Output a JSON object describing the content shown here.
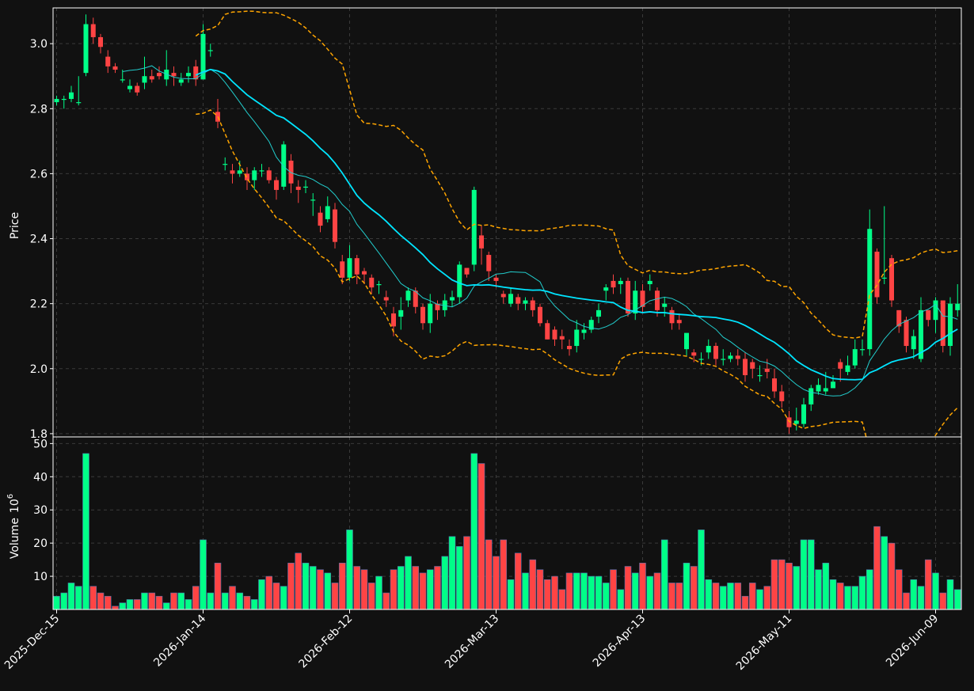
{
  "chart_data": {
    "type": "candlestick",
    "theme": {
      "background": "#111111",
      "up_color": "#00ff88",
      "down_color": "#ff4444",
      "volume_edge_color": "#4f6fa8",
      "ma_long_color": "#00e5ff",
      "ma_short_color": "#22cccc",
      "band_color": "#ffa500",
      "grid": true,
      "grid_color": "#3a3a3a"
    },
    "price_panel": {
      "ylabel": "Price",
      "ylim": [
        1.79,
        3.11
      ],
      "yticks": [
        "1.8",
        "2.0",
        "2.2",
        "2.4",
        "2.6",
        "2.8",
        "3.0"
      ]
    },
    "volume_panel": {
      "ylabel": "Volume",
      "ylabel_exponent": "10",
      "ylabel_power": "6",
      "ylim": [
        0,
        52
      ],
      "yticks": [
        "10",
        "20",
        "30",
        "40",
        "50"
      ]
    },
    "x_ticks": [
      {
        "label": "2025-Dec-15",
        "index": 0
      },
      {
        "label": "2026-Jan-14",
        "index": 20
      },
      {
        "label": "2026-Feb-12",
        "index": 40
      },
      {
        "label": "2026-Mar-13",
        "index": 60
      },
      {
        "label": "2026-Apr-13",
        "index": 80
      },
      {
        "label": "2026-May-11",
        "index": 100
      },
      {
        "label": "2026-Jun-09",
        "index": 120
      }
    ],
    "n_bars": 124,
    "closes": [
      2.83,
      2.83,
      2.85,
      2.82,
      3.06,
      3.02,
      2.99,
      2.93,
      2.92,
      2.89,
      2.87,
      2.85,
      2.9,
      2.89,
      2.9,
      2.92,
      2.9,
      2.89,
      2.91,
      2.89,
      3.03,
      2.98,
      2.76,
      2.63,
      2.6,
      2.61,
      2.58,
      2.61,
      2.61,
      2.58,
      2.55,
      2.69,
      2.57,
      2.55,
      2.56,
      2.52,
      2.44,
      2.5,
      2.39,
      2.28,
      2.34,
      2.29,
      2.29,
      2.25,
      2.26,
      2.21,
      2.13,
      2.18,
      2.24,
      2.19,
      2.14,
      2.2,
      2.18,
      2.21,
      2.22,
      2.32,
      2.29,
      2.55,
      2.37,
      2.3,
      2.27,
      2.22,
      2.23,
      2.2,
      2.21,
      2.18,
      2.14,
      2.09,
      2.09,
      2.09,
      2.06,
      2.12,
      2.12,
      2.15,
      2.18,
      2.25,
      2.25,
      2.27,
      2.17,
      2.24,
      2.19,
      2.27,
      2.18,
      2.2,
      2.14,
      2.14,
      2.11,
      2.04,
      2.03,
      2.07,
      2.03,
      2.03,
      2.04,
      2.03,
      1.98,
      2.0,
      1.98,
      1.99,
      1.93,
      1.9,
      1.82,
      1.84,
      1.89,
      1.94,
      1.95,
      1.94,
      1.96,
      2.0,
      2.01,
      2.06,
      2.06,
      2.43,
      2.22,
      2.28,
      2.21,
      2.13,
      2.07,
      2.1,
      2.18,
      2.15,
      2.21,
      2.07,
      2.2,
      2.2
    ],
    "opens": [
      2.82,
      2.83,
      2.83,
      2.82,
      2.91,
      3.06,
      3.02,
      2.96,
      2.93,
      2.89,
      2.86,
      2.87,
      2.88,
      2.9,
      2.91,
      2.89,
      2.91,
      2.88,
      2.9,
      2.93,
      2.89,
      2.98,
      2.79,
      2.63,
      2.61,
      2.6,
      2.6,
      2.58,
      2.61,
      2.61,
      2.58,
      2.56,
      2.64,
      2.56,
      2.56,
      2.52,
      2.48,
      2.46,
      2.49,
      2.33,
      2.28,
      2.34,
      2.3,
      2.28,
      2.26,
      2.22,
      2.17,
      2.16,
      2.21,
      2.24,
      2.19,
      2.14,
      2.2,
      2.18,
      2.21,
      2.22,
      2.31,
      2.32,
      2.41,
      2.35,
      2.28,
      2.23,
      2.2,
      2.22,
      2.2,
      2.21,
      2.19,
      2.14,
      2.12,
      2.1,
      2.07,
      2.07,
      2.11,
      2.12,
      2.16,
      2.24,
      2.27,
      2.26,
      2.27,
      2.17,
      2.24,
      2.26,
      2.24,
      2.19,
      2.18,
      2.15,
      2.06,
      2.05,
      2.03,
      2.05,
      2.07,
      2.03,
      2.03,
      2.04,
      2.03,
      2.02,
      1.98,
      2.0,
      1.97,
      1.93,
      1.85,
      1.83,
      1.83,
      1.89,
      1.93,
      1.93,
      1.94,
      2.02,
      1.99,
      2.01,
      2.06,
      2.06,
      2.36,
      2.28,
      2.34,
      2.18,
      2.15,
      2.06,
      2.03,
      2.18,
      2.15,
      2.21,
      2.07,
      2.18
    ],
    "highs": [
      2.84,
      2.84,
      2.87,
      2.9,
      3.09,
      3.08,
      3.03,
      2.98,
      2.94,
      2.92,
      2.89,
      2.88,
      2.96,
      2.92,
      2.93,
      2.98,
      2.93,
      2.91,
      2.93,
      2.95,
      3.06,
      3.0,
      2.83,
      2.65,
      2.63,
      2.64,
      2.62,
      2.62,
      2.63,
      2.62,
      2.59,
      2.7,
      2.66,
      2.58,
      2.58,
      2.54,
      2.5,
      2.53,
      2.51,
      2.35,
      2.38,
      2.35,
      2.31,
      2.29,
      2.27,
      2.24,
      2.19,
      2.22,
      2.25,
      2.25,
      2.2,
      2.23,
      2.21,
      2.23,
      2.24,
      2.33,
      2.31,
      2.56,
      2.44,
      2.36,
      2.29,
      2.24,
      2.25,
      2.23,
      2.22,
      2.22,
      2.2,
      2.15,
      2.13,
      2.12,
      2.09,
      2.15,
      2.14,
      2.16,
      2.2,
      2.26,
      2.29,
      2.28,
      2.28,
      2.27,
      2.26,
      2.29,
      2.25,
      2.22,
      2.19,
      2.17,
      2.08,
      2.06,
      2.05,
      2.09,
      2.08,
      2.06,
      2.05,
      2.06,
      2.05,
      2.03,
      2.01,
      2.03,
      2.0,
      1.95,
      1.87,
      1.88,
      1.91,
      1.95,
      1.97,
      1.99,
      1.98,
      2.03,
      2.04,
      2.09,
      2.09,
      2.49,
      2.37,
      2.5,
      2.35,
      2.18,
      2.16,
      2.12,
      2.22,
      2.18,
      2.22,
      2.16,
      2.22,
      2.26
    ],
    "lows": [
      2.81,
      2.8,
      2.82,
      2.81,
      2.9,
      3.0,
      2.97,
      2.91,
      2.91,
      2.88,
      2.85,
      2.84,
      2.86,
      2.88,
      2.89,
      2.87,
      2.87,
      2.87,
      2.88,
      2.87,
      2.89,
      2.96,
      2.74,
      2.61,
      2.57,
      2.59,
      2.55,
      2.55,
      2.59,
      2.57,
      2.52,
      2.55,
      2.54,
      2.51,
      2.54,
      2.47,
      2.42,
      2.45,
      2.37,
      2.26,
      2.27,
      2.26,
      2.26,
      2.23,
      2.23,
      2.19,
      2.1,
      2.12,
      2.19,
      2.17,
      2.12,
      2.11,
      2.15,
      2.16,
      2.19,
      2.2,
      2.28,
      2.3,
      2.32,
      2.27,
      2.25,
      2.2,
      2.19,
      2.18,
      2.18,
      2.16,
      2.13,
      2.09,
      2.07,
      2.06,
      2.04,
      2.05,
      2.09,
      2.11,
      2.14,
      2.21,
      2.23,
      2.23,
      2.16,
      2.15,
      2.17,
      2.24,
      2.16,
      2.16,
      2.12,
      2.12,
      2.04,
      2.02,
      2.01,
      2.03,
      2.01,
      2.01,
      2.02,
      2.01,
      1.96,
      1.97,
      1.96,
      1.97,
      1.91,
      1.88,
      1.8,
      1.81,
      1.82,
      1.87,
      1.92,
      1.92,
      1.94,
      1.96,
      1.98,
      2.0,
      2.04,
      2.04,
      2.2,
      2.26,
      2.19,
      2.11,
      2.05,
      2.03,
      2.02,
      2.13,
      2.11,
      2.05,
      2.04,
      2.16
    ],
    "volumes": [
      4,
      5,
      8,
      7,
      47,
      7,
      5,
      4,
      1,
      2,
      3,
      3,
      5,
      5,
      4,
      2,
      5,
      5,
      3,
      7,
      21,
      5,
      14,
      5,
      7,
      5,
      4,
      3,
      9,
      10,
      8,
      7,
      14,
      17,
      14,
      13,
      12,
      11,
      8,
      14,
      24,
      13,
      12,
      8,
      10,
      5,
      12,
      13,
      16,
      13,
      11,
      12,
      13,
      16,
      22,
      19,
      22,
      47,
      44,
      21,
      16,
      21,
      9,
      17,
      11,
      15,
      12,
      9,
      10,
      6,
      11,
      11,
      11,
      10,
      10,
      8,
      12,
      6,
      13,
      11,
      14,
      10,
      11,
      21,
      8,
      8,
      14,
      13,
      24,
      9,
      8,
      7,
      8,
      8,
      4,
      8,
      6,
      7,
      15,
      15,
      14,
      13,
      21,
      21,
      12,
      14,
      9,
      8,
      7,
      7,
      10,
      12,
      25,
      22,
      20,
      12,
      5,
      9,
      7,
      15,
      11,
      5,
      9,
      6
    ]
  }
}
